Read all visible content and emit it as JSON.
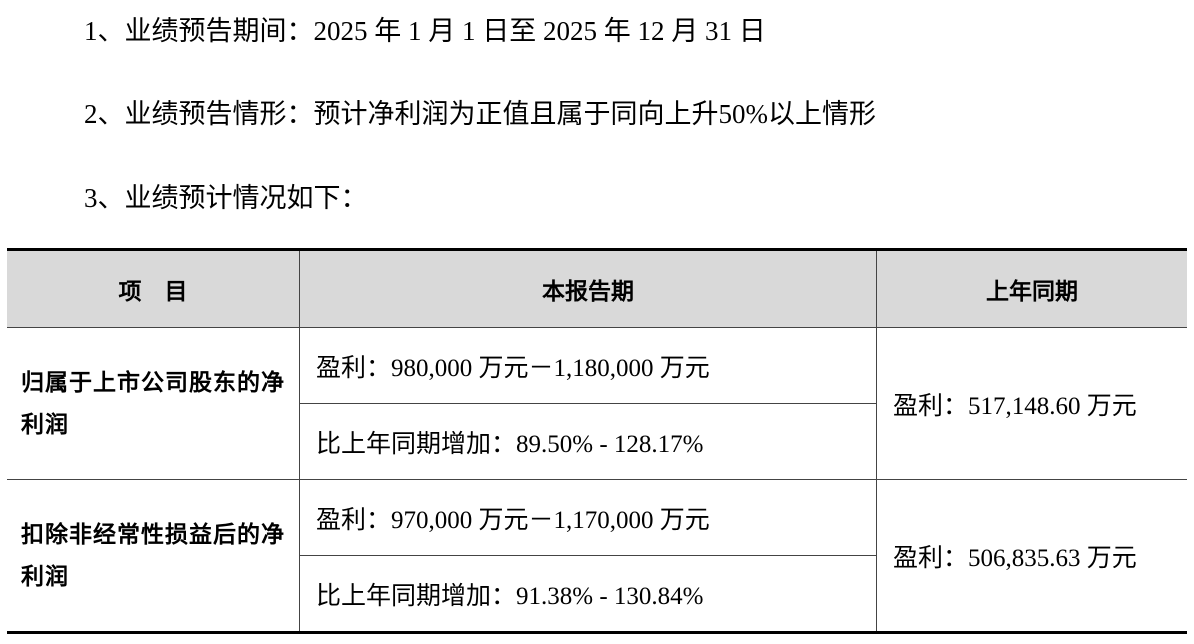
{
  "paragraphs": [
    "1、业绩预告期间：2025 年 1 月 1 日至 2025 年 12 月 31 日",
    "2、业绩预告情形：预计净利润为正值且属于同向上升50%以上情形",
    "3、业绩预计情况如下："
  ],
  "table": {
    "headers": [
      "项　目",
      "本报告期",
      "上年同期"
    ],
    "rows": [
      {
        "item": "归属于上市公司股东的净利润",
        "current_profit": "盈利：980,000 万元－1,180,000 万元",
        "current_growth": "比上年同期增加：89.50% - 128.17%",
        "previous": "盈利：517,148.60 万元"
      },
      {
        "item": "扣除非经常性损益后的净利润",
        "current_profit": "盈利：970,000 万元－1,170,000 万元",
        "current_growth": "比上年同期增加：91.38% - 130.84%",
        "previous": "盈利：506,835.63 万元"
      }
    ]
  }
}
